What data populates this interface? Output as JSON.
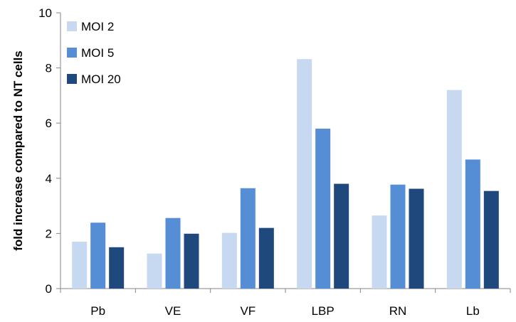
{
  "chart_data": {
    "type": "bar",
    "categories": [
      "Pb",
      "VE",
      "VF",
      "LBP",
      "RN",
      "Lb"
    ],
    "series": [
      {
        "name": "MOI 2",
        "color": "#c6d9f1",
        "values": [
          1.7,
          1.27,
          2.02,
          8.32,
          2.65,
          7.2
        ]
      },
      {
        "name": "MOI 5",
        "color": "#558ed5",
        "values": [
          2.39,
          2.56,
          3.64,
          5.8,
          3.77,
          4.68
        ]
      },
      {
        "name": "MOI 20",
        "color": "#1f497d",
        "values": [
          1.5,
          1.99,
          2.2,
          3.8,
          3.62,
          3.54
        ]
      }
    ],
    "title": "",
    "xlabel": "",
    "ylabel": "fold increase compared to NT cells",
    "ylim": [
      0,
      10
    ],
    "yticks": [
      0,
      2,
      4,
      6,
      8,
      10
    ],
    "grid": false,
    "legend_position": "top-left"
  }
}
